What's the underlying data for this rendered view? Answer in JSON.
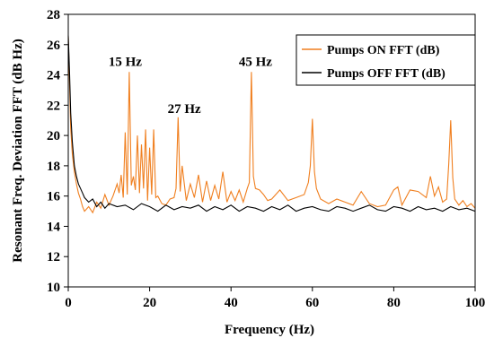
{
  "chart_data": {
    "type": "line",
    "title": "",
    "xlabel": "Frequency (Hz)",
    "ylabel": "Resonant Freq. Deviation  FFT (dB Hz)",
    "xlim": [
      0,
      100
    ],
    "ylim": [
      10,
      28
    ],
    "x_ticks": [
      "0",
      "20",
      "40",
      "60",
      "80",
      "100"
    ],
    "y_ticks": [
      "10",
      "12",
      "14",
      "16",
      "18",
      "20",
      "22",
      "24",
      "26",
      "28"
    ],
    "grid": false,
    "legend_position": "top-right",
    "annotations": [
      {
        "text": "15 Hz",
        "x": 14,
        "y": 24.6
      },
      {
        "text": "27 Hz",
        "x": 28.5,
        "y": 21.5
      },
      {
        "text": "45 Hz",
        "x": 46,
        "y": 24.6
      }
    ],
    "series": [
      {
        "name": "Pumps ON FFT (dB)",
        "color": "#f07f1f",
        "x": [
          0,
          0.3,
          0.6,
          1,
          1.5,
          2,
          2.5,
          3,
          3.5,
          4,
          5,
          6,
          7,
          8,
          9,
          10,
          11,
          12,
          12.5,
          13,
          13.5,
          14,
          14.5,
          15,
          15.5,
          16,
          16.5,
          17,
          17.5,
          18,
          18.5,
          19,
          19.5,
          20,
          20.5,
          21,
          21.5,
          22,
          23,
          24,
          25,
          26,
          26.5,
          27,
          27.5,
          28,
          29,
          30,
          31,
          32,
          33,
          34,
          35,
          36,
          37,
          38,
          39,
          40,
          41,
          42,
          43,
          44,
          44.5,
          45,
          45.5,
          46,
          47,
          48,
          49,
          50,
          52,
          54,
          56,
          58,
          59,
          59.5,
          60,
          60.5,
          61,
          62,
          64,
          66,
          68,
          70,
          72,
          74,
          76,
          78,
          80,
          81,
          82,
          84,
          86,
          88,
          89,
          90,
          91,
          92,
          93,
          93.5,
          94,
          94.5,
          95,
          96,
          97,
          98,
          99,
          100
        ],
        "values": [
          26.5,
          23.5,
          20.5,
          18.8,
          17.6,
          16.8,
          16.2,
          15.8,
          15.3,
          15.0,
          15.3,
          14.9,
          15.6,
          15.2,
          16.1,
          15.4,
          16.0,
          16.8,
          16.2,
          17.4,
          15.9,
          20.2,
          16.1,
          24.2,
          16.7,
          17.3,
          16.4,
          20.0,
          16.2,
          19.4,
          16.5,
          20.4,
          15.7,
          19.2,
          16.1,
          20.4,
          15.9,
          16.0,
          15.5,
          15.4,
          15.8,
          15.9,
          16.5,
          21.2,
          16.3,
          18.0,
          15.7,
          16.8,
          15.9,
          17.4,
          15.6,
          17.0,
          15.7,
          16.7,
          15.8,
          17.6,
          15.6,
          16.3,
          15.7,
          16.4,
          15.6,
          16.5,
          16.9,
          24.2,
          17.3,
          16.5,
          16.4,
          16.1,
          15.7,
          15.8,
          16.4,
          15.7,
          15.9,
          16.1,
          16.9,
          18.0,
          21.1,
          17.6,
          16.5,
          15.8,
          15.5,
          15.8,
          15.6,
          15.4,
          16.3,
          15.5,
          15.3,
          15.4,
          16.4,
          16.6,
          15.4,
          16.4,
          16.3,
          15.9,
          17.3,
          16.0,
          16.6,
          15.6,
          15.8,
          18.1,
          21.0,
          17.2,
          15.8,
          15.4,
          15.7,
          15.3,
          15.5,
          15.2
        ]
      },
      {
        "name": "Pumps OFF FFT (dB)",
        "color": "#000000",
        "x": [
          0,
          0.3,
          0.6,
          1,
          1.5,
          2,
          2.5,
          3,
          3.5,
          4,
          5,
          6,
          7,
          8,
          9,
          10,
          12,
          14,
          16,
          18,
          20,
          22,
          24,
          26,
          28,
          30,
          32,
          34,
          36,
          38,
          40,
          42,
          44,
          46,
          48,
          50,
          52,
          54,
          56,
          58,
          60,
          62,
          64,
          66,
          68,
          70,
          72,
          74,
          76,
          78,
          80,
          82,
          84,
          86,
          88,
          90,
          92,
          94,
          96,
          98,
          100
        ],
        "values": [
          26.6,
          24.2,
          21.5,
          19.6,
          18.0,
          17.3,
          16.8,
          16.5,
          16.2,
          15.9,
          15.6,
          15.8,
          15.3,
          15.6,
          15.2,
          15.5,
          15.3,
          15.4,
          15.1,
          15.5,
          15.3,
          15.0,
          15.4,
          15.1,
          15.3,
          15.2,
          15.4,
          15.0,
          15.3,
          15.1,
          15.4,
          15.0,
          15.3,
          15.2,
          15.0,
          15.3,
          15.1,
          15.4,
          15.0,
          15.2,
          15.3,
          15.1,
          15.0,
          15.3,
          15.2,
          15.0,
          15.2,
          15.4,
          15.1,
          15.0,
          15.3,
          15.2,
          15.0,
          15.3,
          15.1,
          15.2,
          15.0,
          15.3,
          15.1,
          15.2,
          15.0
        ]
      }
    ]
  }
}
